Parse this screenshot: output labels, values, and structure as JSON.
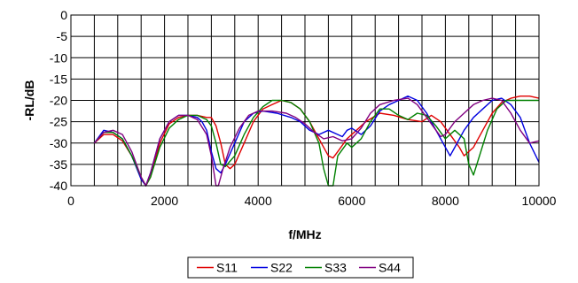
{
  "chart_data": {
    "type": "line",
    "title": "",
    "xlabel": "f/MHz",
    "ylabel": "-RL/dB",
    "xlim": [
      0,
      10000
    ],
    "ylim": [
      -40,
      0
    ],
    "x_ticks": [
      0,
      2000,
      4000,
      6000,
      8000,
      10000
    ],
    "x_tick_labels": [
      "0",
      "2000",
      "4000",
      "6000",
      "8000",
      "10000"
    ],
    "x_minor_step": 500,
    "y_ticks": [
      0,
      -5,
      -10,
      -15,
      -20,
      -25,
      -30,
      -35,
      -40
    ],
    "y_tick_labels": [
      "0",
      "-5",
      "-10",
      "-15",
      "-20",
      "-25",
      "-30",
      "-35",
      "-40"
    ],
    "grid": true,
    "legend": "bottom",
    "series": [
      {
        "name": "S11",
        "color": "#e00000",
        "points": [
          [
            500,
            -30
          ],
          [
            700,
            -28
          ],
          [
            900,
            -28
          ],
          [
            1100,
            -29.5
          ],
          [
            1300,
            -33
          ],
          [
            1500,
            -38
          ],
          [
            1600,
            -40
          ],
          [
            1700,
            -38
          ],
          [
            1900,
            -30
          ],
          [
            2100,
            -25.5
          ],
          [
            2300,
            -24
          ],
          [
            2500,
            -23.5
          ],
          [
            2700,
            -23.5
          ],
          [
            2900,
            -24
          ],
          [
            3000,
            -24
          ],
          [
            3100,
            -26
          ],
          [
            3200,
            -30
          ],
          [
            3300,
            -35
          ],
          [
            3400,
            -36
          ],
          [
            3500,
            -35
          ],
          [
            3700,
            -30
          ],
          [
            3900,
            -25
          ],
          [
            4100,
            -22
          ],
          [
            4300,
            -21
          ],
          [
            4500,
            -20
          ],
          [
            4700,
            -20.5
          ],
          [
            4900,
            -22
          ],
          [
            5100,
            -25
          ],
          [
            5300,
            -29
          ],
          [
            5500,
            -33
          ],
          [
            5600,
            -33.5
          ],
          [
            5700,
            -32
          ],
          [
            5900,
            -29
          ],
          [
            6100,
            -27
          ],
          [
            6300,
            -25
          ],
          [
            6600,
            -23
          ],
          [
            6900,
            -23.5
          ],
          [
            7200,
            -24.5
          ],
          [
            7500,
            -25
          ],
          [
            7700,
            -23.5
          ],
          [
            7900,
            -25
          ],
          [
            8100,
            -28
          ],
          [
            8300,
            -31
          ],
          [
            8400,
            -33
          ],
          [
            8600,
            -31
          ],
          [
            8800,
            -27
          ],
          [
            9000,
            -23
          ],
          [
            9200,
            -20.5
          ],
          [
            9400,
            -19.5
          ],
          [
            9600,
            -19
          ],
          [
            9800,
            -19
          ],
          [
            10000,
            -19.5
          ]
        ]
      },
      {
        "name": "S22",
        "color": "#0000e0",
        "points": [
          [
            500,
            -30
          ],
          [
            700,
            -27
          ],
          [
            900,
            -27.5
          ],
          [
            1100,
            -29
          ],
          [
            1300,
            -33
          ],
          [
            1500,
            -38.5
          ],
          [
            1600,
            -40
          ],
          [
            1700,
            -37
          ],
          [
            1900,
            -29
          ],
          [
            2100,
            -25
          ],
          [
            2300,
            -23.5
          ],
          [
            2500,
            -23.5
          ],
          [
            2700,
            -24
          ],
          [
            2800,
            -25
          ],
          [
            2900,
            -27
          ],
          [
            3000,
            -32
          ],
          [
            3100,
            -36
          ],
          [
            3200,
            -37
          ],
          [
            3300,
            -35
          ],
          [
            3500,
            -30
          ],
          [
            3700,
            -25
          ],
          [
            3900,
            -23
          ],
          [
            4100,
            -22.5
          ],
          [
            4400,
            -23
          ],
          [
            4700,
            -24
          ],
          [
            4900,
            -25
          ],
          [
            5100,
            -27
          ],
          [
            5300,
            -28
          ],
          [
            5500,
            -27
          ],
          [
            5700,
            -28
          ],
          [
            5800,
            -28.5
          ],
          [
            5900,
            -27
          ],
          [
            6000,
            -26.5
          ],
          [
            6200,
            -28
          ],
          [
            6400,
            -26
          ],
          [
            6600,
            -22.5
          ],
          [
            6800,
            -21
          ],
          [
            7000,
            -20
          ],
          [
            7200,
            -19
          ],
          [
            7400,
            -20
          ],
          [
            7600,
            -23
          ],
          [
            7800,
            -27
          ],
          [
            8000,
            -31
          ],
          [
            8100,
            -33
          ],
          [
            8200,
            -31
          ],
          [
            8400,
            -27
          ],
          [
            8600,
            -24
          ],
          [
            8800,
            -22
          ],
          [
            9000,
            -20
          ],
          [
            9200,
            -19.5
          ],
          [
            9400,
            -21
          ],
          [
            9600,
            -24
          ],
          [
            9800,
            -30
          ],
          [
            10000,
            -34.5
          ]
        ]
      },
      {
        "name": "S33",
        "color": "#008000",
        "points": [
          [
            500,
            -30
          ],
          [
            700,
            -27.5
          ],
          [
            900,
            -27.5
          ],
          [
            1100,
            -29
          ],
          [
            1300,
            -33
          ],
          [
            1500,
            -38
          ],
          [
            1600,
            -40
          ],
          [
            1700,
            -38
          ],
          [
            1900,
            -31
          ],
          [
            2100,
            -26.5
          ],
          [
            2300,
            -24.5
          ],
          [
            2500,
            -23.5
          ],
          [
            2700,
            -23.5
          ],
          [
            2900,
            -24.5
          ],
          [
            3000,
            -26
          ],
          [
            3100,
            -30
          ],
          [
            3200,
            -35
          ],
          [
            3300,
            -35.5
          ],
          [
            3500,
            -33
          ],
          [
            3700,
            -28
          ],
          [
            3900,
            -24
          ],
          [
            4100,
            -21.5
          ],
          [
            4300,
            -20
          ],
          [
            4500,
            -20
          ],
          [
            4700,
            -20.5
          ],
          [
            4900,
            -22
          ],
          [
            5100,
            -25
          ],
          [
            5300,
            -30
          ],
          [
            5400,
            -36
          ],
          [
            5500,
            -40
          ],
          [
            5600,
            -40
          ],
          [
            5700,
            -33
          ],
          [
            5900,
            -30
          ],
          [
            6000,
            -31
          ],
          [
            6200,
            -29
          ],
          [
            6400,
            -25
          ],
          [
            6600,
            -22
          ],
          [
            6800,
            -22
          ],
          [
            7000,
            -23.5
          ],
          [
            7200,
            -24.5
          ],
          [
            7400,
            -23
          ],
          [
            7600,
            -23.5
          ],
          [
            7800,
            -26
          ],
          [
            8000,
            -29
          ],
          [
            8200,
            -27
          ],
          [
            8400,
            -29
          ],
          [
            8500,
            -35
          ],
          [
            8600,
            -37.5
          ],
          [
            8700,
            -34
          ],
          [
            8900,
            -27
          ],
          [
            9100,
            -22
          ],
          [
            9300,
            -20
          ],
          [
            9600,
            -20
          ],
          [
            10000,
            -20
          ]
        ]
      },
      {
        "name": "S44",
        "color": "#800080",
        "points": [
          [
            500,
            -30
          ],
          [
            700,
            -27.5
          ],
          [
            900,
            -27
          ],
          [
            1100,
            -28
          ],
          [
            1300,
            -32
          ],
          [
            1500,
            -38
          ],
          [
            1600,
            -40
          ],
          [
            1700,
            -37
          ],
          [
            1900,
            -29
          ],
          [
            2100,
            -25
          ],
          [
            2300,
            -23.5
          ],
          [
            2500,
            -23.5
          ],
          [
            2700,
            -24.5
          ],
          [
            2900,
            -28
          ],
          [
            3000,
            -33
          ],
          [
            3100,
            -40
          ],
          [
            3150,
            -40
          ],
          [
            3250,
            -36
          ],
          [
            3400,
            -31
          ],
          [
            3600,
            -26.5
          ],
          [
            3800,
            -23.5
          ],
          [
            4000,
            -22.5
          ],
          [
            4300,
            -22.5
          ],
          [
            4600,
            -23
          ],
          [
            4800,
            -24
          ],
          [
            5000,
            -25.5
          ],
          [
            5200,
            -27.5
          ],
          [
            5400,
            -29
          ],
          [
            5600,
            -28.5
          ],
          [
            5800,
            -29.5
          ],
          [
            6000,
            -29
          ],
          [
            6200,
            -26.5
          ],
          [
            6400,
            -23
          ],
          [
            6600,
            -21
          ],
          [
            6900,
            -20
          ],
          [
            7200,
            -19.5
          ],
          [
            7400,
            -21
          ],
          [
            7600,
            -24
          ],
          [
            7800,
            -27
          ],
          [
            7900,
            -28.5
          ],
          [
            8000,
            -28
          ],
          [
            8200,
            -25
          ],
          [
            8400,
            -23
          ],
          [
            8600,
            -21
          ],
          [
            8800,
            -20
          ],
          [
            9000,
            -19.5
          ],
          [
            9200,
            -20
          ],
          [
            9400,
            -23
          ],
          [
            9600,
            -27
          ],
          [
            9800,
            -30
          ],
          [
            10000,
            -29.5
          ]
        ]
      }
    ]
  }
}
